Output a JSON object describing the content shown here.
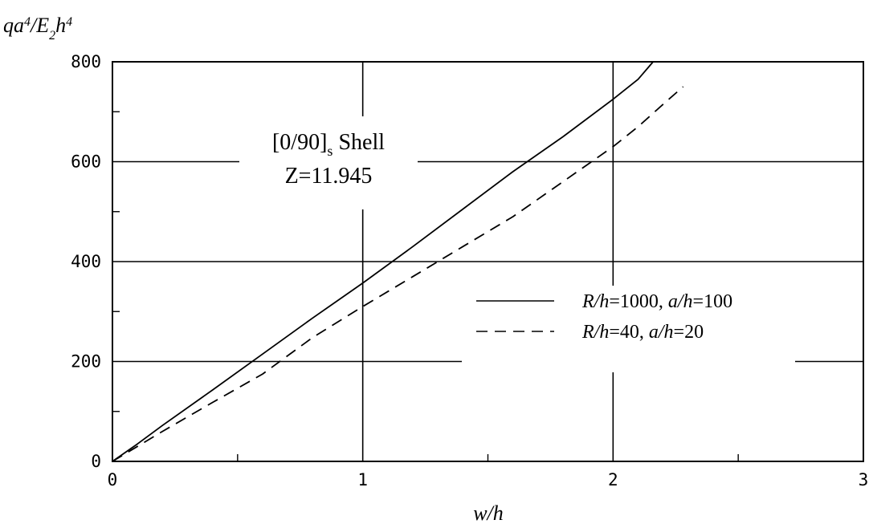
{
  "chart_data": {
    "type": "line",
    "xlabel": "w/h",
    "ylabel": "qa⁴/E₂h⁴",
    "xlim": [
      0,
      3
    ],
    "ylim": [
      0,
      800
    ],
    "x_ticks": [
      "0",
      "1",
      "2",
      "3"
    ],
    "y_ticks": [
      "0",
      "200",
      "400",
      "600",
      "800"
    ],
    "grid": true,
    "legend_position": "center-right",
    "annotation": {
      "line1_main": "[0/90]",
      "line1_sub": "s",
      "line1_tail": " Shell",
      "line2": "Z=11.945"
    },
    "series": [
      {
        "name": "R/h=1000, a/h=100",
        "label_parts": {
          "a": "R/h",
          "b": "=1000, ",
          "c": "a/h",
          "d": "=100"
        },
        "style": "solid",
        "x": [
          0,
          0.1,
          0.2,
          0.4,
          0.6,
          0.8,
          1.0,
          1.2,
          1.4,
          1.6,
          1.8,
          2.0,
          2.1,
          2.16
        ],
        "y": [
          0,
          35,
          72,
          143,
          215,
          287,
          357,
          430,
          505,
          580,
          650,
          725,
          765,
          800
        ]
      },
      {
        "name": "R/h=40, a/h=20",
        "label_parts": {
          "a": "R/h",
          "b": "=40, ",
          "c": "a/h",
          "d": "=20"
        },
        "style": "dashed",
        "x": [
          0,
          0.1,
          0.2,
          0.4,
          0.6,
          0.8,
          1.0,
          1.2,
          1.4,
          1.6,
          1.8,
          2.0,
          2.1,
          2.2,
          2.28
        ],
        "y": [
          0,
          30,
          60,
          118,
          175,
          248,
          310,
          370,
          430,
          490,
          560,
          630,
          670,
          715,
          750
        ]
      }
    ]
  }
}
